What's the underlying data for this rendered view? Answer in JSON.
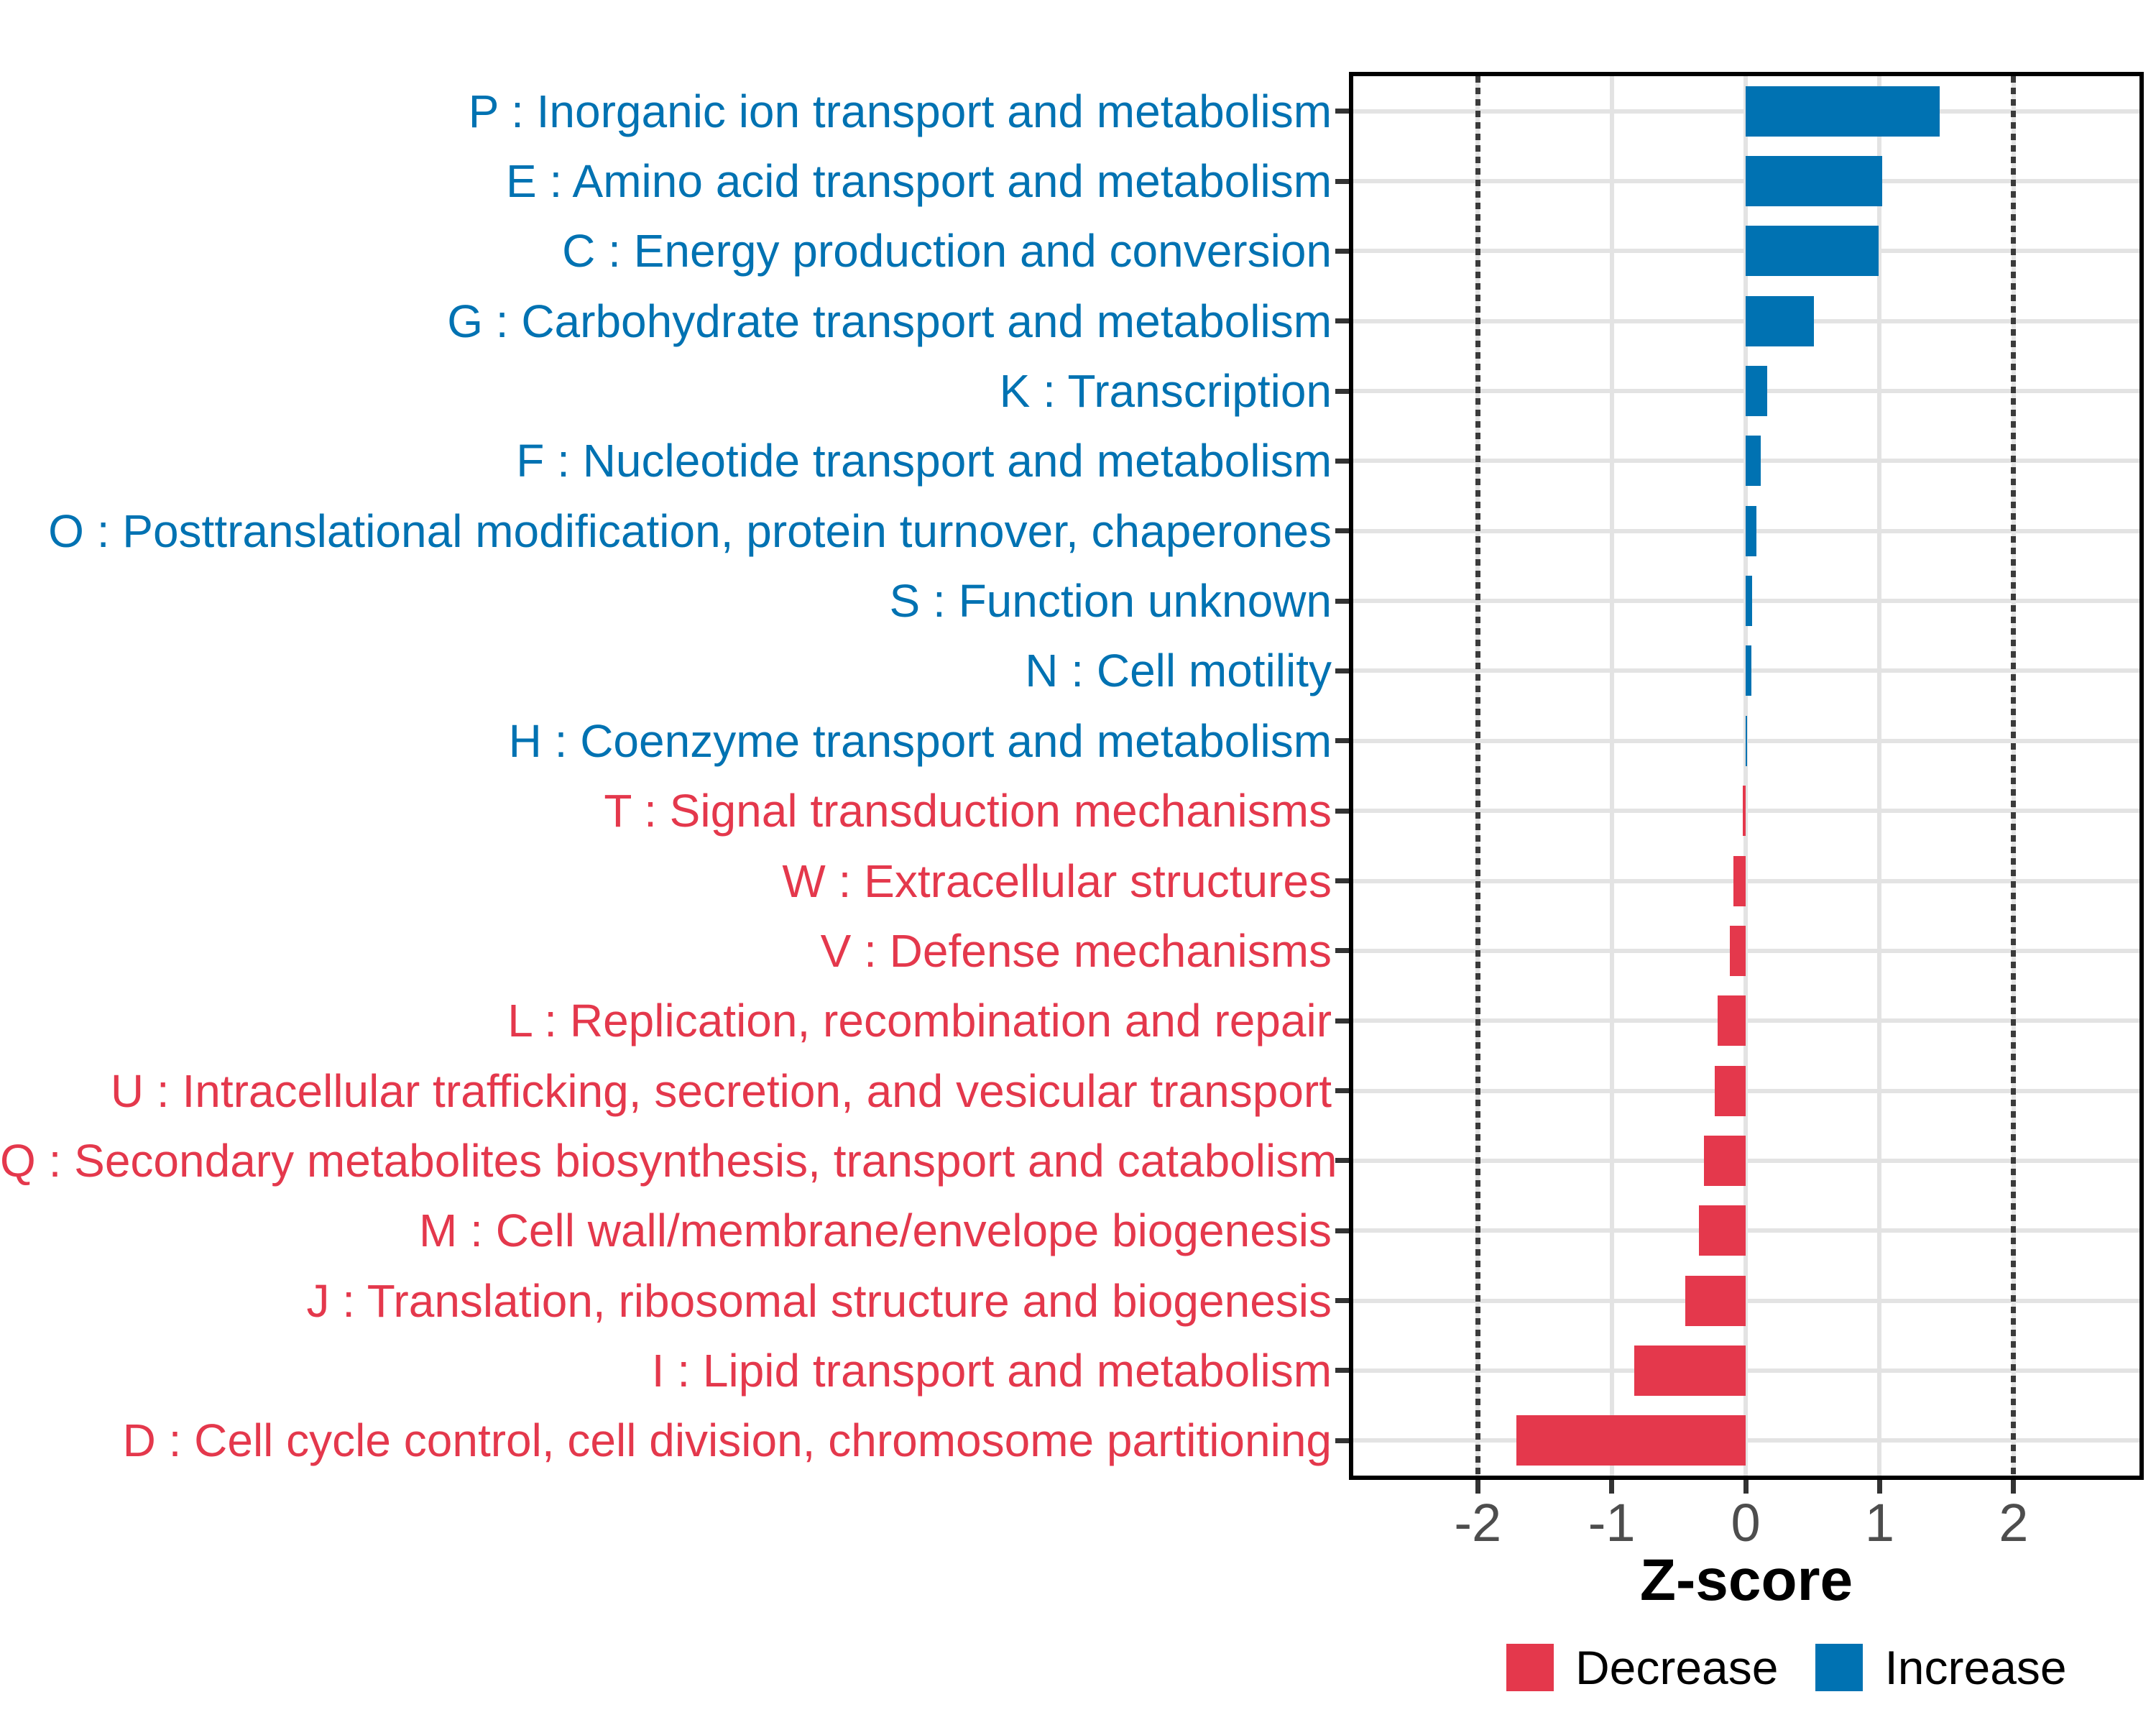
{
  "chart_data": {
    "type": "bar",
    "orientation": "horizontal",
    "title": "",
    "xlabel": "Z-score",
    "xlim": [
      -2.93,
      2.94
    ],
    "x_ticks": [
      -2,
      -1,
      0,
      1,
      2
    ],
    "x_tick_labels": [
      "-2",
      "-1",
      "0",
      "1",
      "2"
    ],
    "reference_lines_dotted": [
      -2,
      2
    ],
    "grid": "on",
    "colors": {
      "Increase": "#0072b2",
      "Decrease": "#e4384c"
    },
    "legend": {
      "position": "bottom-right",
      "entries": [
        {
          "label": "Decrease",
          "color": "#e4384c"
        },
        {
          "label": "Increase",
          "color": "#0072b2"
        }
      ]
    },
    "rows": [
      {
        "label": "P : Inorganic ion transport and metabolism",
        "value": 1.45,
        "group": "Increase"
      },
      {
        "label": "E : Amino acid transport and metabolism",
        "value": 1.02,
        "group": "Increase"
      },
      {
        "label": "C : Energy production and conversion",
        "value": 0.99,
        "group": "Increase"
      },
      {
        "label": "G : Carbohydrate transport and metabolism",
        "value": 0.51,
        "group": "Increase"
      },
      {
        "label": "K : Transcription",
        "value": 0.16,
        "group": "Increase"
      },
      {
        "label": "F : Nucleotide transport and metabolism",
        "value": 0.11,
        "group": "Increase"
      },
      {
        "label": "O : Posttranslational modification, protein turnover, chaperones",
        "value": 0.08,
        "group": "Increase"
      },
      {
        "label": "S : Function unknown",
        "value": 0.05,
        "group": "Increase"
      },
      {
        "label": "N : Cell motility",
        "value": 0.04,
        "group": "Increase"
      },
      {
        "label": "H : Coenzyme transport and metabolism",
        "value": 0.01,
        "group": "Increase"
      },
      {
        "label": "T : Signal transduction mechanisms",
        "value": -0.02,
        "group": "Decrease"
      },
      {
        "label": "W : Extracellular structures",
        "value": -0.09,
        "group": "Decrease"
      },
      {
        "label": "V : Defense mechanisms",
        "value": -0.12,
        "group": "Decrease"
      },
      {
        "label": "L : Replication, recombination and repair",
        "value": -0.21,
        "group": "Decrease"
      },
      {
        "label": "U : Intracellular trafficking, secretion, and vesicular transport",
        "value": -0.23,
        "group": "Decrease"
      },
      {
        "label": "Q : Secondary metabolites biosynthesis, transport and catabolism",
        "value": -0.31,
        "group": "Decrease"
      },
      {
        "label": "M : Cell wall/membrane/envelope biogenesis",
        "value": -0.35,
        "group": "Decrease"
      },
      {
        "label": "J : Translation, ribosomal structure and biogenesis",
        "value": -0.45,
        "group": "Decrease"
      },
      {
        "label": "I : Lipid transport and metabolism",
        "value": -0.83,
        "group": "Decrease"
      },
      {
        "label": "D : Cell cycle control, cell division, chromosome partitioning",
        "value": -1.71,
        "group": "Decrease"
      }
    ]
  }
}
